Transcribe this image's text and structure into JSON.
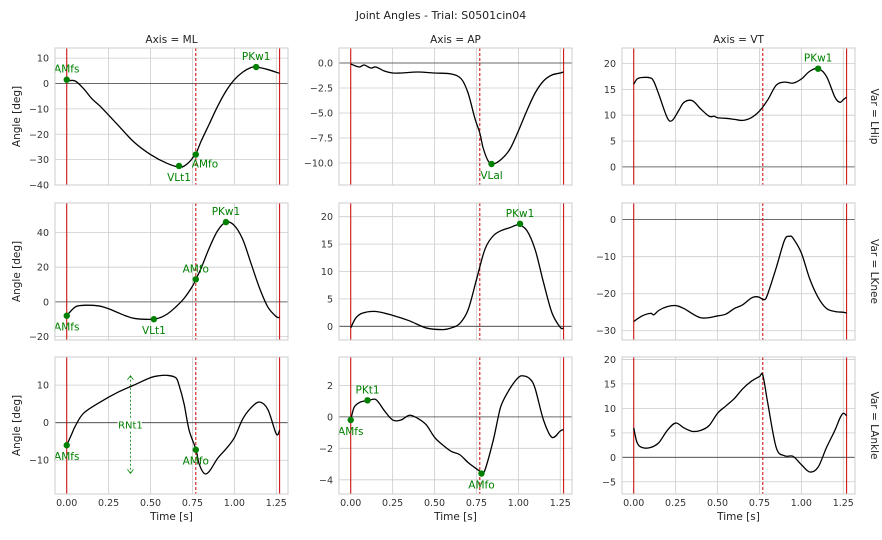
{
  "title": "Joint Angles - Trial: S0501cin04",
  "colors": {
    "curve": "#000000",
    "event_solid": "#cc0000",
    "event_dashed": "#cc0000",
    "marker": "#008000",
    "zero_line": "#444444",
    "grid": "#cccccc",
    "frame": "#cccccc"
  },
  "column_titles": [
    "Axis = ML",
    "Axis = AP",
    "Axis = VT"
  ],
  "row_titles": [
    "Var = LHip",
    "Var = LKnee",
    "Var = LAnkle"
  ],
  "ylabel": "Angle [deg]",
  "xlabel": "Time [s]",
  "chart_data": {
    "type": "line",
    "xlim": [
      -0.07,
      1.32
    ],
    "x_ticks": [
      0.0,
      0.25,
      0.5,
      0.75,
      1.0,
      1.25
    ],
    "x_tick_labels": [
      "0.00",
      "0.25",
      "0.50",
      "0.75",
      "1.00",
      "1.25"
    ],
    "event_lines": {
      "solid": [
        0.0,
        1.27
      ],
      "dashed": [
        0.77
      ]
    },
    "grid": true,
    "panels": [
      {
        "row": "Var = LHip",
        "col": "Axis = ML",
        "ylim": [
          -40,
          14
        ],
        "yticks": [
          -40,
          -30,
          -20,
          -10,
          0,
          10
        ],
        "x": [
          0,
          0.05,
          0.1,
          0.15,
          0.2,
          0.3,
          0.4,
          0.5,
          0.6,
          0.68,
          0.73,
          0.76,
          0.77,
          0.8,
          0.85,
          0.9,
          0.95,
          1.0,
          1.05,
          1.1,
          1.13,
          1.2,
          1.27
        ],
        "y": [
          1,
          1,
          -2,
          -6,
          -9,
          -16,
          -23,
          -28,
          -31.5,
          -33,
          -31,
          -28.5,
          -28,
          -23,
          -16,
          -9,
          -3,
          1.5,
          4.5,
          6.3,
          6.5,
          5.5,
          4
        ],
        "markers": [
          {
            "x": 0.0,
            "y": 1.5,
            "label": "AMfs",
            "pos": "above"
          },
          {
            "x": 0.67,
            "y": -32.5,
            "label": "VLt1",
            "pos": "below"
          },
          {
            "x": 0.77,
            "y": -28,
            "label": "AMfo",
            "pos": "right"
          },
          {
            "x": 1.13,
            "y": 6.5,
            "label": "PKw1",
            "pos": "above"
          }
        ]
      },
      {
        "row": "Var = LHip",
        "col": "Axis = AP",
        "ylim": [
          -12.2,
          1.5
        ],
        "yticks": [
          -10,
          -7.5,
          -5,
          -2.5,
          0
        ],
        "ytick_labels": [
          "−10.0",
          "−7.5",
          "−5.0",
          "−2.5",
          "0.0"
        ],
        "x": [
          0,
          0.05,
          0.08,
          0.12,
          0.15,
          0.2,
          0.25,
          0.3,
          0.4,
          0.5,
          0.6,
          0.66,
          0.7,
          0.74,
          0.77,
          0.79,
          0.82,
          0.85,
          0.9,
          0.95,
          1.0,
          1.05,
          1.1,
          1.15,
          1.2,
          1.25,
          1.27
        ],
        "y": [
          -0.1,
          -0.4,
          -0.2,
          -0.5,
          -0.4,
          -0.8,
          -1.0,
          -1.0,
          -0.9,
          -1.0,
          -1.1,
          -1.6,
          -3.0,
          -5.5,
          -7.0,
          -8.5,
          -9.8,
          -10.1,
          -9.6,
          -8.6,
          -6.8,
          -4.8,
          -3.0,
          -1.8,
          -1.2,
          -1.0,
          -0.9
        ],
        "markers": [
          {
            "x": 0.84,
            "y": -10.1,
            "label": "VLal",
            "pos": "below"
          }
        ]
      },
      {
        "row": "Var = LHip",
        "col": "Axis = VT",
        "ylim": [
          -3.5,
          23
        ],
        "yticks": [
          0,
          5,
          10,
          15,
          20
        ],
        "x": [
          0,
          0.02,
          0.05,
          0.1,
          0.12,
          0.15,
          0.2,
          0.23,
          0.27,
          0.3,
          0.35,
          0.4,
          0.45,
          0.48,
          0.5,
          0.55,
          0.6,
          0.65,
          0.7,
          0.75,
          0.8,
          0.85,
          0.9,
          0.95,
          1.0,
          1.05,
          1.1,
          1.15,
          1.2,
          1.23,
          1.25,
          1.27
        ],
        "y": [
          16,
          17,
          17.3,
          17.2,
          16.5,
          14,
          9.5,
          9,
          11,
          12.5,
          12.8,
          11.2,
          9.8,
          9.8,
          9.5,
          9.4,
          9.2,
          9,
          9.5,
          10.8,
          13,
          15.8,
          16.4,
          16.2,
          17,
          18.5,
          19,
          17.5,
          13.5,
          12.5,
          13,
          13.5
        ],
        "markers": [
          {
            "x": 1.1,
            "y": 19,
            "label": "PKw1",
            "pos": "above"
          }
        ]
      },
      {
        "row": "Var = LKnee",
        "col": "Axis = ML",
        "ylim": [
          -22,
          57
        ],
        "yticks": [
          -20,
          0,
          20,
          40
        ],
        "x": [
          0,
          0.05,
          0.1,
          0.15,
          0.2,
          0.25,
          0.3,
          0.35,
          0.4,
          0.45,
          0.52,
          0.56,
          0.6,
          0.65,
          0.7,
          0.75,
          0.77,
          0.8,
          0.85,
          0.9,
          0.95,
          1.0,
          1.05,
          1.1,
          1.15,
          1.2,
          1.25,
          1.27
        ],
        "y": [
          -8,
          -3,
          -2,
          -2,
          -2.5,
          -4,
          -6,
          -8,
          -9.5,
          -10,
          -10,
          -9,
          -7,
          -3,
          2,
          9,
          13,
          19,
          31,
          41,
          46,
          44,
          36,
          22,
          8,
          -3,
          -8.5,
          -9
        ],
        "markers": [
          {
            "x": 0.0,
            "y": -8,
            "label": "AMfs",
            "pos": "below"
          },
          {
            "x": 0.52,
            "y": -10,
            "label": "VLt1",
            "pos": "below"
          },
          {
            "x": 0.77,
            "y": 13,
            "label": "AMfo",
            "pos": "above"
          },
          {
            "x": 0.95,
            "y": 46,
            "label": "PKw1",
            "pos": "above"
          }
        ]
      },
      {
        "row": "Var = LKnee",
        "col": "Axis = AP",
        "ylim": [
          -2.5,
          22.5
        ],
        "yticks": [
          0,
          5,
          10,
          15,
          20
        ],
        "x": [
          0,
          0.03,
          0.07,
          0.15,
          0.25,
          0.35,
          0.45,
          0.55,
          0.6,
          0.65,
          0.7,
          0.75,
          0.8,
          0.85,
          0.9,
          0.95,
          1.0,
          1.05,
          1.1,
          1.15,
          1.2,
          1.25,
          1.27
        ],
        "y": [
          -0.3,
          1.5,
          2.4,
          2.7,
          2.0,
          1.0,
          -0.3,
          -0.6,
          -0.3,
          0.5,
          3,
          8.5,
          14,
          16.5,
          17.5,
          18,
          18.5,
          17.5,
          14,
          8,
          2.5,
          -0.2,
          -0.3
        ],
        "markers": [
          {
            "x": 1.01,
            "y": 18.7,
            "label": "PKw1",
            "pos": "above"
          }
        ]
      },
      {
        "row": "Var = LKnee",
        "col": "Axis = VT",
        "ylim": [
          -32.5,
          4.5
        ],
        "yticks": [
          -30,
          -20,
          -10,
          0
        ],
        "x": [
          0,
          0.05,
          0.1,
          0.12,
          0.15,
          0.2,
          0.25,
          0.3,
          0.4,
          0.5,
          0.55,
          0.6,
          0.65,
          0.7,
          0.73,
          0.75,
          0.78,
          0.8,
          0.85,
          0.9,
          0.93,
          0.95,
          1.0,
          1.05,
          1.1,
          1.15,
          1.2,
          1.25,
          1.27
        ],
        "y": [
          -27.5,
          -26,
          -25.3,
          -25.7,
          -24.5,
          -23.5,
          -23.2,
          -24,
          -26.5,
          -26,
          -25.5,
          -24,
          -23,
          -21.2,
          -20.8,
          -21,
          -21.6,
          -20,
          -13,
          -5.5,
          -4.5,
          -5,
          -9,
          -16,
          -21,
          -24,
          -24.8,
          -25,
          -25.2
        ],
        "markers": []
      },
      {
        "row": "Var = LAnkle",
        "col": "Axis = ML",
        "ylim": [
          -19,
          17.5
        ],
        "yticks": [
          -10,
          0,
          10
        ],
        "x": [
          0,
          0.03,
          0.05,
          0.1,
          0.2,
          0.3,
          0.4,
          0.5,
          0.55,
          0.6,
          0.65,
          0.67,
          0.7,
          0.73,
          0.77,
          0.79,
          0.82,
          0.85,
          0.9,
          0.95,
          1.0,
          1.05,
          1.1,
          1.15,
          1.2,
          1.25,
          1.27
        ],
        "y": [
          -6,
          -3,
          -1,
          2.5,
          5.5,
          8,
          10,
          12,
          12.5,
          12.6,
          12,
          10,
          5,
          -2,
          -7,
          -11,
          -13.5,
          -13,
          -9.5,
          -7,
          -4,
          1,
          4,
          5.5,
          3.5,
          -3,
          -2
        ],
        "markers": [
          {
            "x": 0.0,
            "y": -6,
            "label": "AMfs",
            "pos": "below"
          },
          {
            "x": 0.77,
            "y": -7.2,
            "label": "AMfo",
            "pos": "below"
          }
        ],
        "annotation": {
          "label": "RNt1",
          "x": 0.38,
          "y_top": 12.5,
          "y_bottom": -13.5
        }
      },
      {
        "row": "Var = LAnkle",
        "col": "Axis = AP",
        "ylim": [
          -4.9,
          3.8
        ],
        "yticks": [
          -4,
          -2,
          0,
          2
        ],
        "x": [
          0,
          0.02,
          0.05,
          0.08,
          0.1,
          0.15,
          0.2,
          0.25,
          0.3,
          0.35,
          0.4,
          0.45,
          0.5,
          0.55,
          0.6,
          0.65,
          0.7,
          0.75,
          0.78,
          0.8,
          0.85,
          0.88,
          0.9,
          0.95,
          1.0,
          1.03,
          1.07,
          1.1,
          1.15,
          1.2,
          1.25,
          1.27
        ],
        "y": [
          -0.2,
          0.6,
          0.9,
          1.0,
          1.0,
          1.1,
          0.4,
          -0.2,
          -0.2,
          0.1,
          -0.1,
          -0.5,
          -1.3,
          -1.8,
          -2.2,
          -2.4,
          -2.9,
          -3.3,
          -3.5,
          -3.4,
          -1.5,
          0.0,
          0.8,
          1.8,
          2.5,
          2.6,
          2.4,
          1.8,
          -0.2,
          -1.3,
          -0.9,
          -0.8
        ],
        "markers": [
          {
            "x": 0.0,
            "y": -0.2,
            "label": "AMfs",
            "pos": "below"
          },
          {
            "x": 0.1,
            "y": 1.05,
            "label": "PKt1",
            "pos": "above"
          },
          {
            "x": 0.78,
            "y": -3.6,
            "label": "AMfo",
            "pos": "below"
          }
        ]
      },
      {
        "row": "Var = LAnkle",
        "col": "Axis = VT",
        "ylim": [
          -7.5,
          20.5
        ],
        "yticks": [
          -5,
          0,
          5,
          10,
          15,
          20
        ],
        "x": [
          0,
          0.02,
          0.05,
          0.1,
          0.15,
          0.2,
          0.25,
          0.3,
          0.35,
          0.4,
          0.45,
          0.5,
          0.55,
          0.6,
          0.65,
          0.7,
          0.75,
          0.77,
          0.8,
          0.85,
          0.9,
          0.95,
          1.0,
          1.05,
          1.1,
          1.15,
          1.2,
          1.23,
          1.25,
          1.27
        ],
        "y": [
          6,
          3,
          2,
          2,
          3,
          5.5,
          7,
          6,
          5.3,
          5.5,
          6.5,
          9,
          10.5,
          12,
          14,
          15.5,
          16.5,
          16.8,
          11,
          2,
          0.3,
          0.2,
          -1.5,
          -3,
          -2,
          2,
          5.5,
          8,
          9,
          8.5
        ],
        "markers": []
      }
    ]
  }
}
